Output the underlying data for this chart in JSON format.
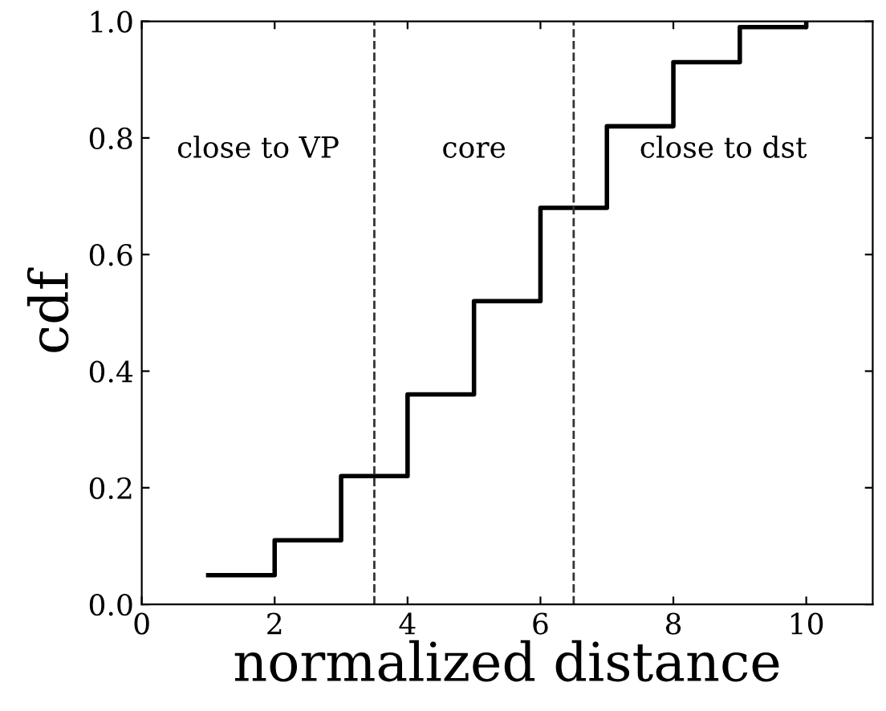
{
  "chart_data": {
    "type": "step",
    "xlabel": "normalized distance",
    "ylabel": "cdf",
    "x": [
      1,
      2,
      3,
      4,
      5,
      6,
      7,
      8,
      9,
      10
    ],
    "series": [
      {
        "color": "#000000",
        "values": [
          0.05,
          0.11,
          0.22,
          0.36,
          0.52,
          0.68,
          0.82,
          0.93,
          0.99,
          1.0
        ]
      }
    ],
    "xlim": [
      0,
      11
    ],
    "xticks": [
      0,
      2,
      4,
      6,
      8,
      10
    ],
    "ylim": [
      0,
      1
    ],
    "yticks": [
      {
        "value": 0,
        "label": "0.0"
      },
      {
        "value": 0.2,
        "label": "0.2"
      },
      {
        "value": 0.4,
        "label": "0.4"
      },
      {
        "value": 0.6,
        "label": "0.6"
      },
      {
        "value": 0.8,
        "label": "0.8"
      },
      {
        "value": 1.0,
        "label": "1.0"
      }
    ],
    "ref_lines": [
      {
        "axis": "x",
        "value": 3.5,
        "color": "#333333",
        "line_style": "dashed"
      },
      {
        "axis": "x",
        "value": 6.5,
        "color": "#333333",
        "line_style": "dashed"
      }
    ],
    "annotations": [
      "close to VP",
      "core",
      "close to dst"
    ],
    "grid": false,
    "legend": false
  }
}
